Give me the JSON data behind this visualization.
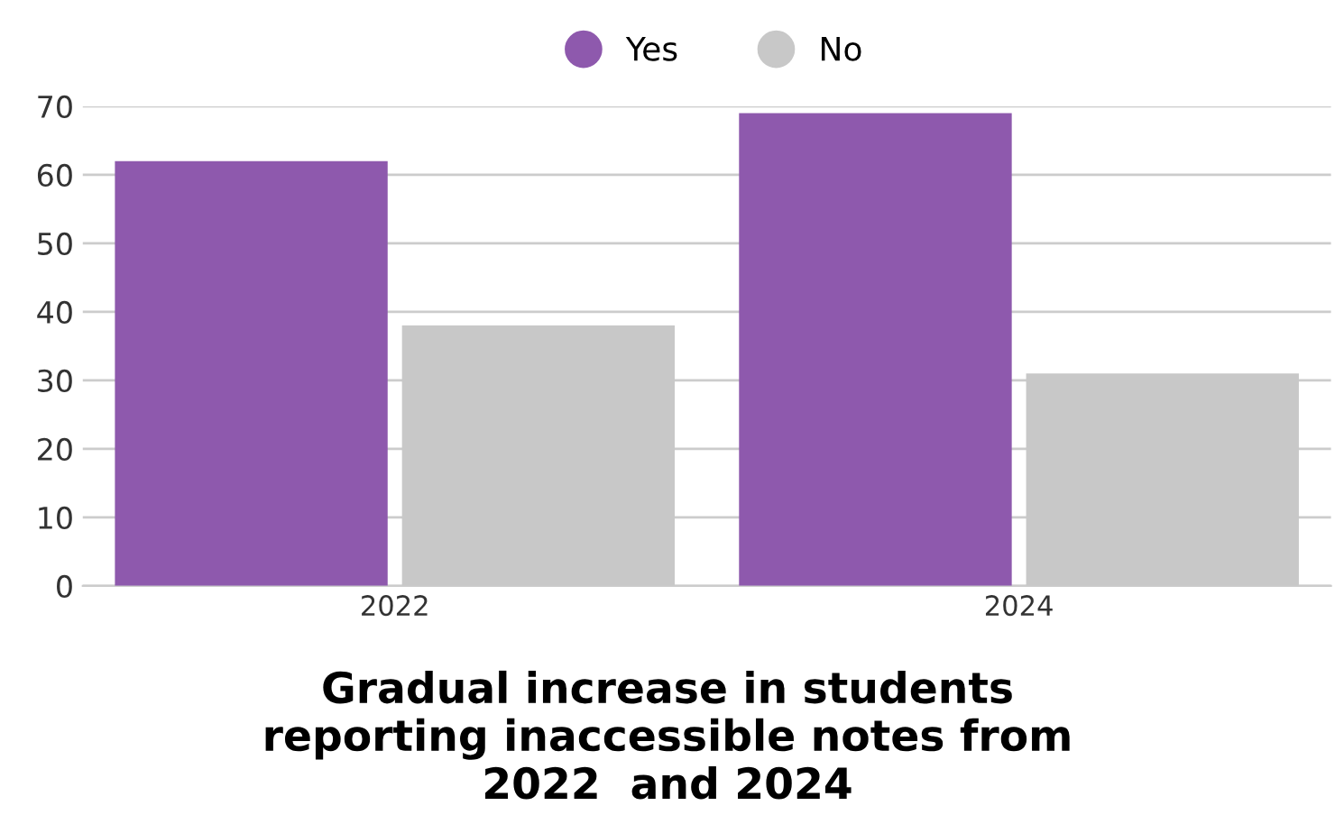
{
  "chart_data": {
    "type": "bar",
    "title": "Gradual increase in students\nreporting inaccessible notes from\n2022  and 2024",
    "categories": [
      "2022",
      "2024"
    ],
    "series": [
      {
        "name": "Yes",
        "color": "#8e59ad",
        "values": [
          62,
          69
        ]
      },
      {
        "name": "No",
        "color": "#c8c8c8",
        "values": [
          38,
          31
        ]
      }
    ],
    "ylim": [
      0,
      70
    ],
    "yticks": [
      0,
      10,
      20,
      30,
      40,
      50,
      60,
      70
    ],
    "grid": "y",
    "legend": "top"
  }
}
